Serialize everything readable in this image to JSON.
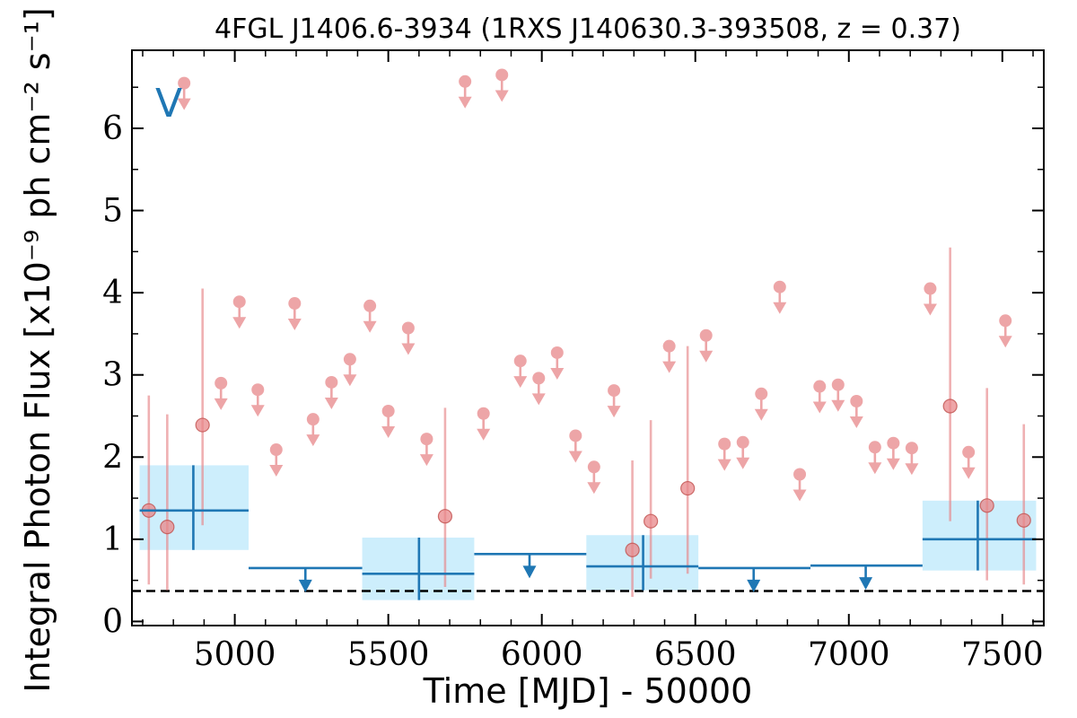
{
  "chart_data": {
    "type": "scatter",
    "title": "4FGL J1406.6-3934 (1RXS J140630.3-393508, z = 0.37)",
    "xlabel": "Time [MJD] - 50000",
    "ylabel": "Integral Photon Flux [x10⁻⁹ ph cm⁻² s⁻¹]",
    "xlim": [
      4665,
      7635
    ],
    "ylim": [
      -0.05,
      6.95
    ],
    "xticks": [
      5000,
      5500,
      6000,
      6500,
      7000,
      7500
    ],
    "yticks": [
      0,
      1,
      2,
      3,
      4,
      5,
      6
    ],
    "grid": false,
    "legend": "none",
    "annotation": "V",
    "reference_level": 0.37,
    "colors": {
      "short_bins": "#e8878a",
      "long_bins": "#1f77b4",
      "long_bins_fill": "#cdeefc",
      "reference_line": "#000000"
    },
    "series": [
      {
        "binning": "short",
        "detections": [
          {
            "x": 4720,
            "y": 1.35,
            "ylo": 0.45,
            "yhi": 2.75
          },
          {
            "x": 4780,
            "y": 1.15,
            "ylo": 0.38,
            "yhi": 2.52
          },
          {
            "x": 4895,
            "y": 2.39,
            "ylo": 1.17,
            "yhi": 4.05
          },
          {
            "x": 5685,
            "y": 1.28,
            "ylo": 0.42,
            "yhi": 2.6
          },
          {
            "x": 6295,
            "y": 0.87,
            "ylo": 0.3,
            "yhi": 1.96
          },
          {
            "x": 6355,
            "y": 1.22,
            "ylo": 0.52,
            "yhi": 2.45
          },
          {
            "x": 6475,
            "y": 1.62,
            "ylo": 0.58,
            "yhi": 3.35
          },
          {
            "x": 7330,
            "y": 2.62,
            "ylo": 1.22,
            "yhi": 4.55
          },
          {
            "x": 7450,
            "y": 1.41,
            "ylo": 0.5,
            "yhi": 2.84
          },
          {
            "x": 7570,
            "y": 1.23,
            "ylo": 0.45,
            "yhi": 2.4
          }
        ],
        "upper_limits": [
          {
            "x": 4835,
            "y": 6.55
          },
          {
            "x": 4955,
            "y": 2.9
          },
          {
            "x": 5015,
            "y": 3.89
          },
          {
            "x": 5075,
            "y": 2.82
          },
          {
            "x": 5135,
            "y": 2.09
          },
          {
            "x": 5195,
            "y": 3.87
          },
          {
            "x": 5255,
            "y": 2.46
          },
          {
            "x": 5315,
            "y": 2.91
          },
          {
            "x": 5375,
            "y": 3.19
          },
          {
            "x": 5440,
            "y": 3.84
          },
          {
            "x": 5500,
            "y": 2.56
          },
          {
            "x": 5565,
            "y": 3.57
          },
          {
            "x": 5625,
            "y": 2.22
          },
          {
            "x": 5750,
            "y": 6.57
          },
          {
            "x": 5810,
            "y": 2.53
          },
          {
            "x": 5870,
            "y": 6.65
          },
          {
            "x": 5930,
            "y": 3.17
          },
          {
            "x": 5990,
            "y": 2.96
          },
          {
            "x": 6050,
            "y": 3.27
          },
          {
            "x": 6110,
            "y": 2.26
          },
          {
            "x": 6170,
            "y": 1.88
          },
          {
            "x": 6235,
            "y": 2.81
          },
          {
            "x": 6415,
            "y": 3.35
          },
          {
            "x": 6535,
            "y": 3.48
          },
          {
            "x": 6595,
            "y": 2.16
          },
          {
            "x": 6655,
            "y": 2.18
          },
          {
            "x": 6715,
            "y": 2.77
          },
          {
            "x": 6775,
            "y": 4.07
          },
          {
            "x": 6840,
            "y": 1.79
          },
          {
            "x": 6905,
            "y": 2.86
          },
          {
            "x": 6965,
            "y": 2.88
          },
          {
            "x": 7025,
            "y": 2.68
          },
          {
            "x": 7085,
            "y": 2.12
          },
          {
            "x": 7145,
            "y": 2.17
          },
          {
            "x": 7205,
            "y": 2.11
          },
          {
            "x": 7265,
            "y": 4.05
          },
          {
            "x": 7390,
            "y": 2.06
          },
          {
            "x": 7510,
            "y": 3.66
          }
        ]
      },
      {
        "binning": "long",
        "detections": [
          {
            "x": 4865,
            "x0": 4690,
            "x1": 5045,
            "y": 1.35,
            "ylo": 0.87,
            "yhi": 1.9
          },
          {
            "x": 5600,
            "x0": 5415,
            "x1": 5780,
            "y": 0.58,
            "ylo": 0.26,
            "yhi": 1.02
          },
          {
            "x": 6330,
            "x0": 6145,
            "x1": 6510,
            "y": 0.67,
            "ylo": 0.38,
            "yhi": 1.05
          },
          {
            "x": 7420,
            "x0": 7240,
            "x1": 7610,
            "y": 1.0,
            "ylo": 0.62,
            "yhi": 1.47
          }
        ],
        "upper_limits": [
          {
            "x": 5230,
            "x0": 5045,
            "x1": 5415,
            "y": 0.65
          },
          {
            "x": 5960,
            "x0": 5780,
            "x1": 6145,
            "y": 0.82
          },
          {
            "x": 6690,
            "x0": 6510,
            "x1": 6875,
            "y": 0.65
          },
          {
            "x": 7055,
            "x0": 6875,
            "x1": 7240,
            "y": 0.68
          }
        ]
      }
    ]
  }
}
